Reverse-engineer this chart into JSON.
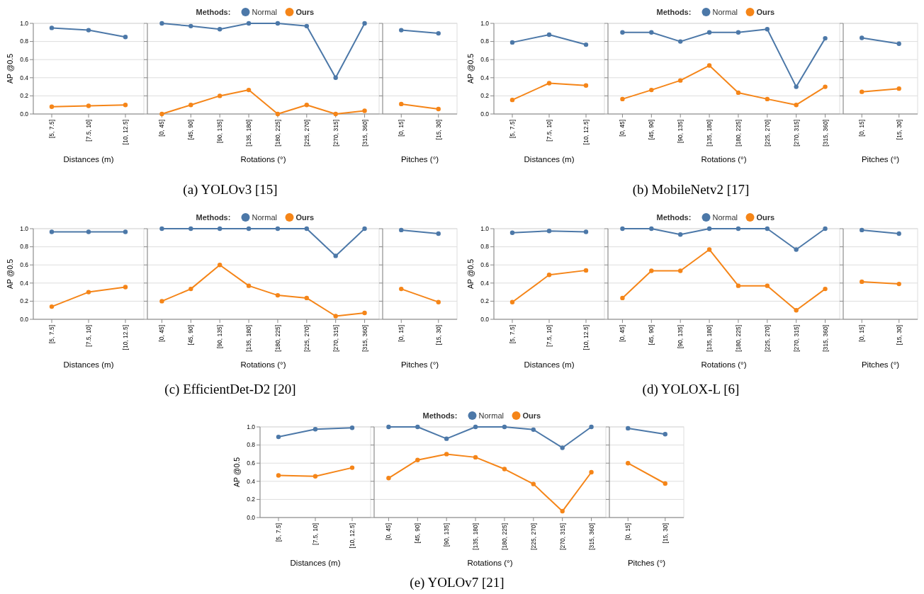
{
  "chart_data": [
    {
      "type": "line",
      "xlabel": "Distances (m)",
      "ylabel": "AP @0.5",
      "categories": [
        "[5, 7.5]",
        "[7.5, 10]",
        "[10, 12.5]"
      ],
      "ylim": [
        0,
        1
      ],
      "yticks": [
        {
          "value": 0,
          "label": "0.0"
        },
        {
          "value": 0.2,
          "label": "0.2"
        },
        {
          "value": 0.4,
          "label": "0.4"
        },
        {
          "value": 0.6,
          "label": "0.6"
        },
        {
          "value": 0.8,
          "label": "0.8"
        },
        {
          "value": 1,
          "label": "1.0"
        }
      ],
      "grid": "y",
      "marker": "circle",
      "series": [
        {
          "color": "#4c78a8",
          "values": [
            0.95,
            0.925,
            0.85
          ]
        },
        {
          "color": "#f58518",
          "values": [
            0.08,
            0.09,
            0.1
          ]
        }
      ]
    },
    {
      "type": "line",
      "xlabel": "Rotations (°)",
      "legend_title": "Methods:",
      "legend": "top",
      "annotations": [
        "(a) YOLOv3 [15]"
      ],
      "categories": [
        "[0, 45]",
        "[45, 90]",
        "[90, 135]",
        "[135, 180]",
        "[180, 225]",
        "[225, 270]",
        "[270, 315]",
        "[315, 360]"
      ],
      "ylim": [
        0,
        1
      ],
      "yticks": [
        {
          "value": 0,
          "label": null
        },
        {
          "value": 0.2,
          "label": null
        },
        {
          "value": 0.4,
          "label": null
        },
        {
          "value": 0.6,
          "label": null
        },
        {
          "value": 0.8,
          "label": null
        },
        {
          "value": 1,
          "label": null
        }
      ],
      "tick_labels": "x",
      "grid": "y",
      "marker": "circle",
      "series": [
        {
          "name": "Normal",
          "color": "#4c78a8",
          "values": [
            1,
            0.97,
            0.935,
            1,
            1,
            0.97,
            0.4,
            1
          ]
        },
        {
          "name": "Ours",
          "color": "#f58518",
          "values": [
            0,
            0.1,
            0.2,
            0.265,
            0,
            0.1,
            0,
            0.035
          ]
        }
      ]
    },
    {
      "type": "line",
      "xlabel": "Pitches (°)",
      "categories": [
        "[0, 15]",
        "[15, 30]"
      ],
      "ylim": [
        0,
        1
      ],
      "yticks": [
        {
          "value": 0,
          "label": null
        },
        {
          "value": 0.2,
          "label": null
        },
        {
          "value": 0.4,
          "label": null
        },
        {
          "value": 0.6,
          "label": null
        },
        {
          "value": 0.8,
          "label": null
        },
        {
          "value": 1,
          "label": null
        }
      ],
      "tick_labels": "x",
      "grid": "y",
      "marker": "circle",
      "series": [
        {
          "color": "#4c78a8",
          "values": [
            0.925,
            0.89
          ]
        },
        {
          "color": "#f58518",
          "values": [
            0.11,
            0.055
          ]
        }
      ]
    },
    {
      "type": "line",
      "xlabel": "Distances (m)",
      "ylabel": "AP @0.5",
      "categories": [
        "[5, 7.5]",
        "[7.5, 10]",
        "[10, 12.5]"
      ],
      "ylim": [
        0,
        1
      ],
      "yticks": [
        {
          "value": 0,
          "label": "0.0"
        },
        {
          "value": 0.2,
          "label": "0.2"
        },
        {
          "value": 0.4,
          "label": "0.4"
        },
        {
          "value": 0.6,
          "label": "0.6"
        },
        {
          "value": 0.8,
          "label": "0.8"
        },
        {
          "value": 1,
          "label": "1.0"
        }
      ],
      "grid": "y",
      "marker": "circle",
      "series": [
        {
          "color": "#4c78a8",
          "values": [
            0.79,
            0.875,
            0.765
          ]
        },
        {
          "color": "#f58518",
          "values": [
            0.155,
            0.34,
            0.315
          ]
        }
      ]
    },
    {
      "type": "line",
      "xlabel": "Rotations (°)",
      "legend_title": "Methods:",
      "legend": "top",
      "annotations": [
        "(b) MobileNetv2 [17]"
      ],
      "categories": [
        "[0, 45]",
        "[45, 90]",
        "[90, 135]",
        "[135, 180]",
        "[180, 225]",
        "[225, 270]",
        "[270, 315]",
        "[315, 360]"
      ],
      "ylim": [
        0,
        1
      ],
      "yticks": [
        {
          "value": 0,
          "label": null
        },
        {
          "value": 0.2,
          "label": null
        },
        {
          "value": 0.4,
          "label": null
        },
        {
          "value": 0.6,
          "label": null
        },
        {
          "value": 0.8,
          "label": null
        },
        {
          "value": 1,
          "label": null
        }
      ],
      "tick_labels": "x",
      "grid": "y",
      "marker": "circle",
      "series": [
        {
          "name": "Normal",
          "color": "#4c78a8",
          "values": [
            0.9,
            0.9,
            0.8,
            0.9,
            0.9,
            0.935,
            0.3,
            0.835
          ]
        },
        {
          "name": "Ours",
          "color": "#f58518",
          "values": [
            0.165,
            0.265,
            0.37,
            0.535,
            0.235,
            0.165,
            0.1,
            0.3
          ]
        }
      ]
    },
    {
      "type": "line",
      "xlabel": "Pitches (°)",
      "categories": [
        "[0, 15]",
        "[15, 30]"
      ],
      "ylim": [
        0,
        1
      ],
      "yticks": [
        {
          "value": 0,
          "label": null
        },
        {
          "value": 0.2,
          "label": null
        },
        {
          "value": 0.4,
          "label": null
        },
        {
          "value": 0.6,
          "label": null
        },
        {
          "value": 0.8,
          "label": null
        },
        {
          "value": 1,
          "label": null
        }
      ],
      "tick_labels": "x",
      "grid": "y",
      "marker": "circle",
      "series": [
        {
          "color": "#4c78a8",
          "values": [
            0.84,
            0.775
          ]
        },
        {
          "color": "#f58518",
          "values": [
            0.245,
            0.28
          ]
        }
      ]
    },
    {
      "type": "line",
      "xlabel": "Distances (m)",
      "ylabel": "AP @0.5",
      "categories": [
        "[5, 7.5]",
        "[7.5, 10]",
        "[10, 12.5]"
      ],
      "ylim": [
        0,
        1
      ],
      "yticks": [
        {
          "value": 0,
          "label": "0.0"
        },
        {
          "value": 0.2,
          "label": "0.2"
        },
        {
          "value": 0.4,
          "label": "0.4"
        },
        {
          "value": 0.6,
          "label": "0.6"
        },
        {
          "value": 0.8,
          "label": "0.8"
        },
        {
          "value": 1,
          "label": "1.0"
        }
      ],
      "grid": "y",
      "marker": "circle",
      "series": [
        {
          "color": "#4c78a8",
          "values": [
            0.965,
            0.965,
            0.965
          ]
        },
        {
          "color": "#f58518",
          "values": [
            0.14,
            0.3,
            0.355
          ]
        }
      ]
    },
    {
      "type": "line",
      "xlabel": "Rotations (°)",
      "legend_title": "Methods:",
      "legend": "top",
      "annotations": [
        "(c) EfficientDet-D2 [20]"
      ],
      "categories": [
        "[0, 45]",
        "[45, 90]",
        "[90, 135]",
        "[135, 180]",
        "[180, 225]",
        "[225, 270]",
        "[270, 315]",
        "[315, 360]"
      ],
      "ylim": [
        0,
        1
      ],
      "yticks": [
        {
          "value": 0,
          "label": null
        },
        {
          "value": 0.2,
          "label": null
        },
        {
          "value": 0.4,
          "label": null
        },
        {
          "value": 0.6,
          "label": null
        },
        {
          "value": 0.8,
          "label": null
        },
        {
          "value": 1,
          "label": null
        }
      ],
      "tick_labels": "x",
      "grid": "y",
      "marker": "circle",
      "series": [
        {
          "name": "Normal",
          "color": "#4c78a8",
          "values": [
            1,
            1,
            1,
            1,
            1,
            1,
            0.7,
            1
          ]
        },
        {
          "name": "Ours",
          "color": "#f58518",
          "values": [
            0.2,
            0.335,
            0.6,
            0.37,
            0.265,
            0.235,
            0.035,
            0.07
          ]
        }
      ]
    },
    {
      "type": "line",
      "xlabel": "Pitches (°)",
      "categories": [
        "[0, 15]",
        "[15, 30]"
      ],
      "ylim": [
        0,
        1
      ],
      "yticks": [
        {
          "value": 0,
          "label": null
        },
        {
          "value": 0.2,
          "label": null
        },
        {
          "value": 0.4,
          "label": null
        },
        {
          "value": 0.6,
          "label": null
        },
        {
          "value": 0.8,
          "label": null
        },
        {
          "value": 1,
          "label": null
        }
      ],
      "tick_labels": "x",
      "grid": "y",
      "marker": "circle",
      "series": [
        {
          "color": "#4c78a8",
          "values": [
            0.985,
            0.945
          ]
        },
        {
          "color": "#f58518",
          "values": [
            0.335,
            0.19
          ]
        }
      ]
    },
    {
      "type": "line",
      "xlabel": "Distances (m)",
      "ylabel": "AP @0.5",
      "categories": [
        "[5, 7.5]",
        "[7.5, 10]",
        "[10, 12.5]"
      ],
      "ylim": [
        0,
        1
      ],
      "yticks": [
        {
          "value": 0,
          "label": "0.0"
        },
        {
          "value": 0.2,
          "label": "0.2"
        },
        {
          "value": 0.4,
          "label": "0.4"
        },
        {
          "value": 0.6,
          "label": "0.6"
        },
        {
          "value": 0.8,
          "label": "0.8"
        },
        {
          "value": 1,
          "label": "1.0"
        }
      ],
      "grid": "y",
      "marker": "circle",
      "series": [
        {
          "color": "#4c78a8",
          "values": [
            0.955,
            0.975,
            0.965
          ]
        },
        {
          "color": "#f58518",
          "values": [
            0.19,
            0.49,
            0.54
          ]
        }
      ]
    },
    {
      "type": "line",
      "xlabel": "Rotations (°)",
      "legend_title": "Methods:",
      "legend": "top",
      "annotations": [
        "(d) YOLOX-L [6]"
      ],
      "categories": [
        "[0, 45]",
        "[45, 90]",
        "[90, 135]",
        "[135, 180]",
        "[180, 225]",
        "[225, 270]",
        "[270, 315]",
        "[315, 360]"
      ],
      "ylim": [
        0,
        1
      ],
      "yticks": [
        {
          "value": 0,
          "label": null
        },
        {
          "value": 0.2,
          "label": null
        },
        {
          "value": 0.4,
          "label": null
        },
        {
          "value": 0.6,
          "label": null
        },
        {
          "value": 0.8,
          "label": null
        },
        {
          "value": 1,
          "label": null
        }
      ],
      "tick_labels": "x",
      "grid": "y",
      "marker": "circle",
      "series": [
        {
          "name": "Normal",
          "color": "#4c78a8",
          "values": [
            1,
            1,
            0.935,
            1,
            1,
            1,
            0.77,
            1
          ]
        },
        {
          "name": "Ours",
          "color": "#f58518",
          "values": [
            0.235,
            0.535,
            0.535,
            0.77,
            0.37,
            0.37,
            0.1,
            0.335
          ]
        }
      ]
    },
    {
      "type": "line",
      "xlabel": "Pitches (°)",
      "categories": [
        "[0, 15]",
        "[15, 30]"
      ],
      "ylim": [
        0,
        1
      ],
      "yticks": [
        {
          "value": 0,
          "label": null
        },
        {
          "value": 0.2,
          "label": null
        },
        {
          "value": 0.4,
          "label": null
        },
        {
          "value": 0.6,
          "label": null
        },
        {
          "value": 0.8,
          "label": null
        },
        {
          "value": 1,
          "label": null
        }
      ],
      "tick_labels": "x",
      "grid": "y",
      "marker": "circle",
      "series": [
        {
          "color": "#4c78a8",
          "values": [
            0.985,
            0.945
          ]
        },
        {
          "color": "#f58518",
          "values": [
            0.415,
            0.39
          ]
        }
      ]
    },
    {
      "type": "line",
      "xlabel": "Distances (m)",
      "ylabel": "AP @0.5",
      "categories": [
        "[5, 7.5]",
        "[7.5, 10]",
        "[10, 12.5]"
      ],
      "ylim": [
        0,
        1
      ],
      "yticks": [
        {
          "value": 0,
          "label": "0.0"
        },
        {
          "value": 0.2,
          "label": "0.2"
        },
        {
          "value": 0.4,
          "label": "0.4"
        },
        {
          "value": 0.6,
          "label": "0.6"
        },
        {
          "value": 0.8,
          "label": "0.8"
        },
        {
          "value": 1,
          "label": "1.0"
        }
      ],
      "grid": "y",
      "marker": "circle",
      "series": [
        {
          "color": "#4c78a8",
          "values": [
            0.89,
            0.975,
            0.99
          ]
        },
        {
          "color": "#f58518",
          "values": [
            0.465,
            0.455,
            0.55
          ]
        }
      ]
    },
    {
      "type": "line",
      "xlabel": "Rotations (°)",
      "legend_title": "Methods:",
      "legend": "top",
      "annotations": [
        "(e) YOLOv7 [21]"
      ],
      "categories": [
        "[0, 45]",
        "[45, 90]",
        "[90, 135]",
        "[135, 180]",
        "[180, 225]",
        "[225, 270]",
        "[270, 315]",
        "[315, 360]"
      ],
      "ylim": [
        0,
        1
      ],
      "yticks": [
        {
          "value": 0,
          "label": null
        },
        {
          "value": 0.2,
          "label": null
        },
        {
          "value": 0.4,
          "label": null
        },
        {
          "value": 0.6,
          "label": null
        },
        {
          "value": 0.8,
          "label": null
        },
        {
          "value": 1,
          "label": null
        }
      ],
      "tick_labels": "x",
      "grid": "y",
      "marker": "circle",
      "series": [
        {
          "name": "Normal",
          "color": "#4c78a8",
          "values": [
            1,
            1,
            0.87,
            1,
            1,
            0.97,
            0.77,
            1
          ]
        },
        {
          "name": "Ours",
          "color": "#f58518",
          "values": [
            0.435,
            0.635,
            0.7,
            0.665,
            0.535,
            0.37,
            0.07,
            0.5
          ]
        }
      ]
    },
    {
      "type": "line",
      "xlabel": "Pitches (°)",
      "categories": [
        "[0, 15]",
        "[15, 30]"
      ],
      "ylim": [
        0,
        1
      ],
      "yticks": [
        {
          "value": 0,
          "label": null
        },
        {
          "value": 0.2,
          "label": null
        },
        {
          "value": 0.4,
          "label": null
        },
        {
          "value": 0.6,
          "label": null
        },
        {
          "value": 0.8,
          "label": null
        },
        {
          "value": 1,
          "label": null
        }
      ],
      "tick_labels": "x",
      "grid": "y",
      "marker": "circle",
      "series": [
        {
          "color": "#4c78a8",
          "values": [
            0.985,
            0.92
          ]
        },
        {
          "color": "#f58518",
          "values": [
            0.6,
            0.375
          ]
        }
      ]
    }
  ]
}
